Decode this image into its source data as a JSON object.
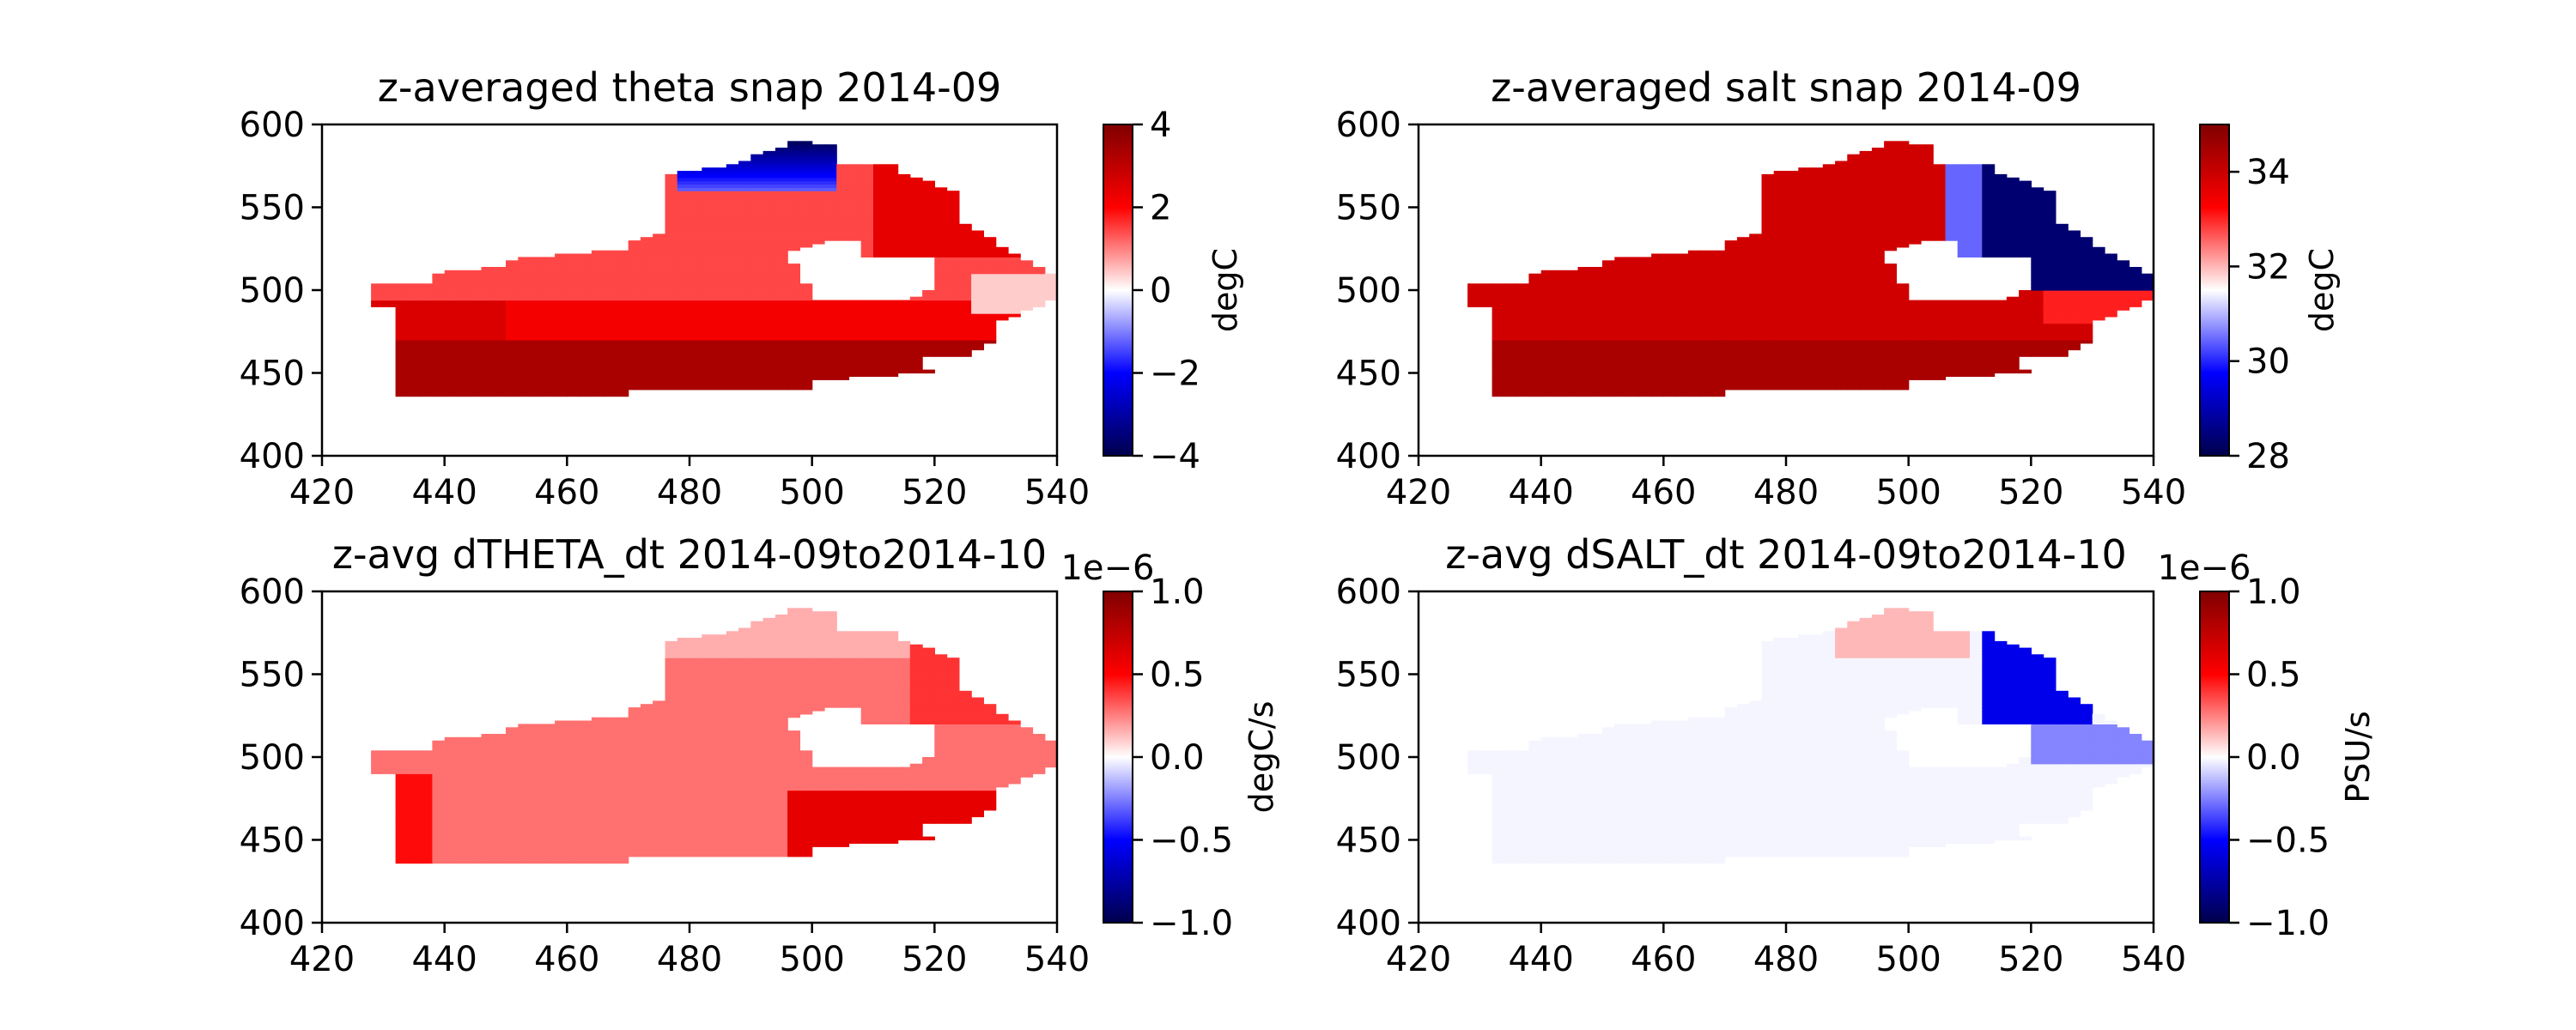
{
  "figure": {
    "panels": [
      {
        "title": "z-averaged theta snap 2014-09",
        "field": "theta",
        "chart_data": {
          "type": "heatmap",
          "title": "z-averaged theta snap 2014-09",
          "xlim": [
            420,
            540
          ],
          "ylim": [
            400,
            600
          ],
          "x_ticks": [
            "420",
            "440",
            "460",
            "480",
            "500",
            "520",
            "540"
          ],
          "y_ticks": [
            "400",
            "450",
            "500",
            "550",
            "600"
          ],
          "colormap": "seismic",
          "colorbar": {
            "label": "degC",
            "range": [
              -4,
              4
            ],
            "ticks": [
              "−4",
              "−2",
              "0",
              "2",
              "4"
            ],
            "exponent": ""
          }
        }
      },
      {
        "title": "z-averaged salt snap 2014-09",
        "field": "salt",
        "chart_data": {
          "type": "heatmap",
          "title": "z-averaged salt snap 2014-09",
          "xlim": [
            420,
            540
          ],
          "ylim": [
            400,
            600
          ],
          "x_ticks": [
            "420",
            "440",
            "460",
            "480",
            "500",
            "520",
            "540"
          ],
          "y_ticks": [
            "400",
            "450",
            "500",
            "550",
            "600"
          ],
          "colormap": "seismic",
          "colorbar": {
            "label": "degC",
            "range": [
              28,
              35
            ],
            "ticks": [
              "28",
              "30",
              "32",
              "34"
            ],
            "exponent": ""
          }
        }
      },
      {
        "title": "z-avg dTHETA_dt 2014-09to2014-10",
        "field": "dtheta",
        "chart_data": {
          "type": "heatmap",
          "title": "z-avg dTHETA_dt 2014-09to2014-10",
          "xlim": [
            420,
            540
          ],
          "ylim": [
            400,
            600
          ],
          "x_ticks": [
            "420",
            "440",
            "460",
            "480",
            "500",
            "520",
            "540"
          ],
          "y_ticks": [
            "400",
            "450",
            "500",
            "550",
            "600"
          ],
          "colormap": "seismic",
          "colorbar": {
            "label": "degC/s",
            "range": [
              -1.0,
              1.0
            ],
            "ticks": [
              "−1.0",
              "−0.5",
              "0.0",
              "0.5",
              "1.0"
            ],
            "exponent": "1e−6"
          }
        }
      },
      {
        "title": "z-avg dSALT_dt 2014-09to2014-10",
        "field": "dsalt",
        "chart_data": {
          "type": "heatmap",
          "title": "z-avg dSALT_dt 2014-09to2014-10",
          "xlim": [
            420,
            540
          ],
          "ylim": [
            400,
            600
          ],
          "x_ticks": [
            "420",
            "440",
            "460",
            "480",
            "500",
            "520",
            "540"
          ],
          "y_ticks": [
            "400",
            "450",
            "500",
            "550",
            "600"
          ],
          "colormap": "seismic",
          "colorbar": {
            "label": "PSU/s",
            "range": [
              -1.0,
              1.0
            ],
            "ticks": [
              "−1.0",
              "−0.5",
              "0.0",
              "0.5",
              "1.0"
            ],
            "exponent": "1e−6"
          }
        }
      }
    ]
  }
}
